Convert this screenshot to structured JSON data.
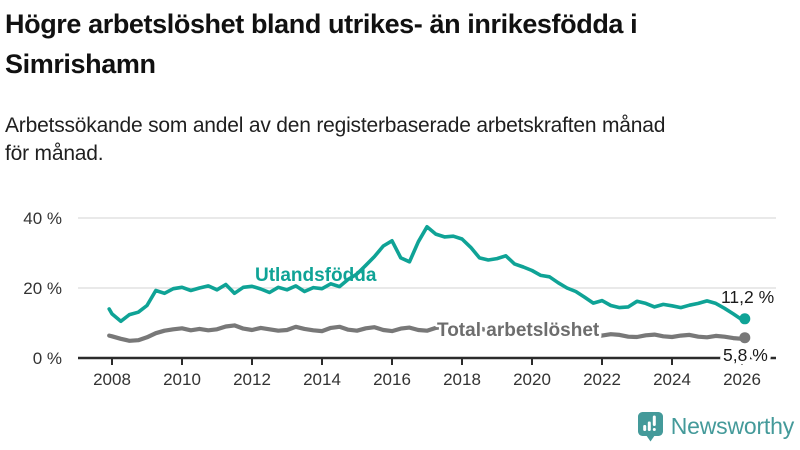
{
  "header": {
    "title": "Högre arbetslöshet bland utrikes- än inrikesfödda i Simrishamn",
    "title_lines": [
      "Högre arbetslöshet bland utrikes- än inrikesfödda i",
      "Simrishamn"
    ],
    "subtitle": "Arbetssökande som andel av den registerbaserade arbetskraften månad för månad.",
    "subtitle_lines": [
      "Arbetssökande som andel av den registerbaserade arbetskraften månad",
      "för månad."
    ]
  },
  "chart_data": {
    "type": "line",
    "title": "Högre arbetslöshet bland utrikes- än inrikesfödda i Simrishamn",
    "subtitle": "Arbetssökande som andel av den registerbaserade arbetskraften månad för månad.",
    "unit": "%",
    "xlim": [
      2007.75,
      2026.6
    ],
    "ylim": [
      0,
      42
    ],
    "grid": "horizontal",
    "axis_color": "#2b2b2b",
    "grid_color": "#dcdcdc",
    "tick_text_color": "#333333",
    "y_ticks": [
      {
        "value": 0,
        "label": "0 %"
      },
      {
        "value": 20,
        "label": "20 %"
      },
      {
        "value": 40,
        "label": "40 %"
      }
    ],
    "x_ticks": [
      {
        "value": 2008,
        "label": "2008"
      },
      {
        "value": 2010,
        "label": "2010"
      },
      {
        "value": 2012,
        "label": "2012"
      },
      {
        "value": 2014,
        "label": "2014"
      },
      {
        "value": 2016,
        "label": "2016"
      },
      {
        "value": 2018,
        "label": "2018"
      },
      {
        "value": 2020,
        "label": "2020"
      },
      {
        "value": 2022,
        "label": "2022"
      },
      {
        "value": 2024,
        "label": "2024"
      },
      {
        "value": 2026,
        "label": "2026"
      }
    ],
    "x": [
      2007.92,
      2008.0,
      2008.25,
      2008.5,
      2008.75,
      2009.0,
      2009.25,
      2009.5,
      2009.75,
      2010.0,
      2010.25,
      2010.5,
      2010.75,
      2011.0,
      2011.25,
      2011.5,
      2011.75,
      2012.0,
      2012.25,
      2012.5,
      2012.75,
      2013.0,
      2013.25,
      2013.5,
      2013.75,
      2014.0,
      2014.25,
      2014.5,
      2014.75,
      2015.0,
      2015.25,
      2015.5,
      2015.75,
      2016.0,
      2016.25,
      2016.5,
      2016.75,
      2017.0,
      2017.25,
      2017.5,
      2017.75,
      2018.0,
      2018.25,
      2018.5,
      2018.75,
      2019.0,
      2019.25,
      2019.5,
      2019.75,
      2020.0,
      2020.25,
      2020.5,
      2020.75,
      2021.0,
      2021.25,
      2021.5,
      2021.75,
      2022.0,
      2022.25,
      2022.5,
      2022.75,
      2023.0,
      2023.25,
      2023.5,
      2023.75,
      2024.0,
      2024.25,
      2024.5,
      2024.75,
      2025.0,
      2025.25,
      2025.5,
      2025.75,
      2026.0,
      2026.08
    ],
    "series": [
      {
        "id": "utlandsfodda",
        "name": "Utlandsfödda",
        "color": "#0fa396",
        "end_label": "11,2 %",
        "last_value": 11.2,
        "values": [
          14.0,
          12.6,
          10.5,
          12.4,
          13.1,
          15.0,
          19.3,
          18.5,
          19.8,
          20.2,
          19.3,
          20.0,
          20.6,
          19.5,
          21.0,
          18.5,
          20.2,
          20.5,
          19.7,
          18.7,
          20.2,
          19.5,
          20.6,
          19.0,
          20.1,
          19.8,
          21.2,
          20.4,
          22.5,
          24.0,
          26.5,
          29.0,
          32.0,
          33.5,
          28.6,
          27.5,
          33.2,
          37.5,
          35.4,
          34.6,
          34.8,
          34.0,
          31.6,
          28.6,
          28.0,
          28.4,
          29.2,
          26.9,
          26.0,
          25.0,
          23.6,
          23.2,
          21.5,
          20.0,
          19.0,
          17.4,
          15.7,
          16.4,
          15.0,
          14.4,
          14.6,
          16.2,
          15.6,
          14.6,
          15.3,
          14.9,
          14.4,
          15.1,
          15.6,
          16.3,
          15.6,
          14.2,
          12.6,
          10.9,
          11.2
        ]
      },
      {
        "id": "total-arbetsloshet",
        "name": "Total arbetslöshet",
        "color": "#787878",
        "label_color": "#6d6d6d",
        "end_label": "5,8 %",
        "last_value": 5.8,
        "values": [
          6.4,
          6.2,
          5.5,
          4.9,
          5.1,
          5.9,
          7.1,
          7.8,
          8.2,
          8.5,
          7.9,
          8.3,
          7.9,
          8.2,
          9.0,
          9.3,
          8.4,
          8.0,
          8.6,
          8.2,
          7.8,
          8.0,
          8.9,
          8.3,
          7.9,
          7.7,
          8.6,
          8.9,
          8.1,
          7.8,
          8.5,
          8.8,
          8.0,
          7.7,
          8.4,
          8.7,
          8.0,
          7.8,
          8.6,
          8.9,
          8.2,
          7.7,
          8.2,
          8.5,
          7.8,
          7.4,
          7.9,
          8.1,
          7.4,
          7.3,
          8.2,
          8.5,
          7.7,
          7.4,
          7.8,
          7.3,
          6.8,
          6.4,
          6.8,
          6.6,
          6.1,
          6.0,
          6.5,
          6.7,
          6.2,
          6.0,
          6.4,
          6.6,
          6.1,
          5.9,
          6.3,
          6.1,
          5.7,
          5.5,
          5.8
        ]
      }
    ],
    "legend_position": "inline-labels"
  },
  "footer": {
    "brand": "Newsworthy",
    "brand_color": "#449a9a",
    "logo_icon": "bar-chart-speech-bubble"
  }
}
